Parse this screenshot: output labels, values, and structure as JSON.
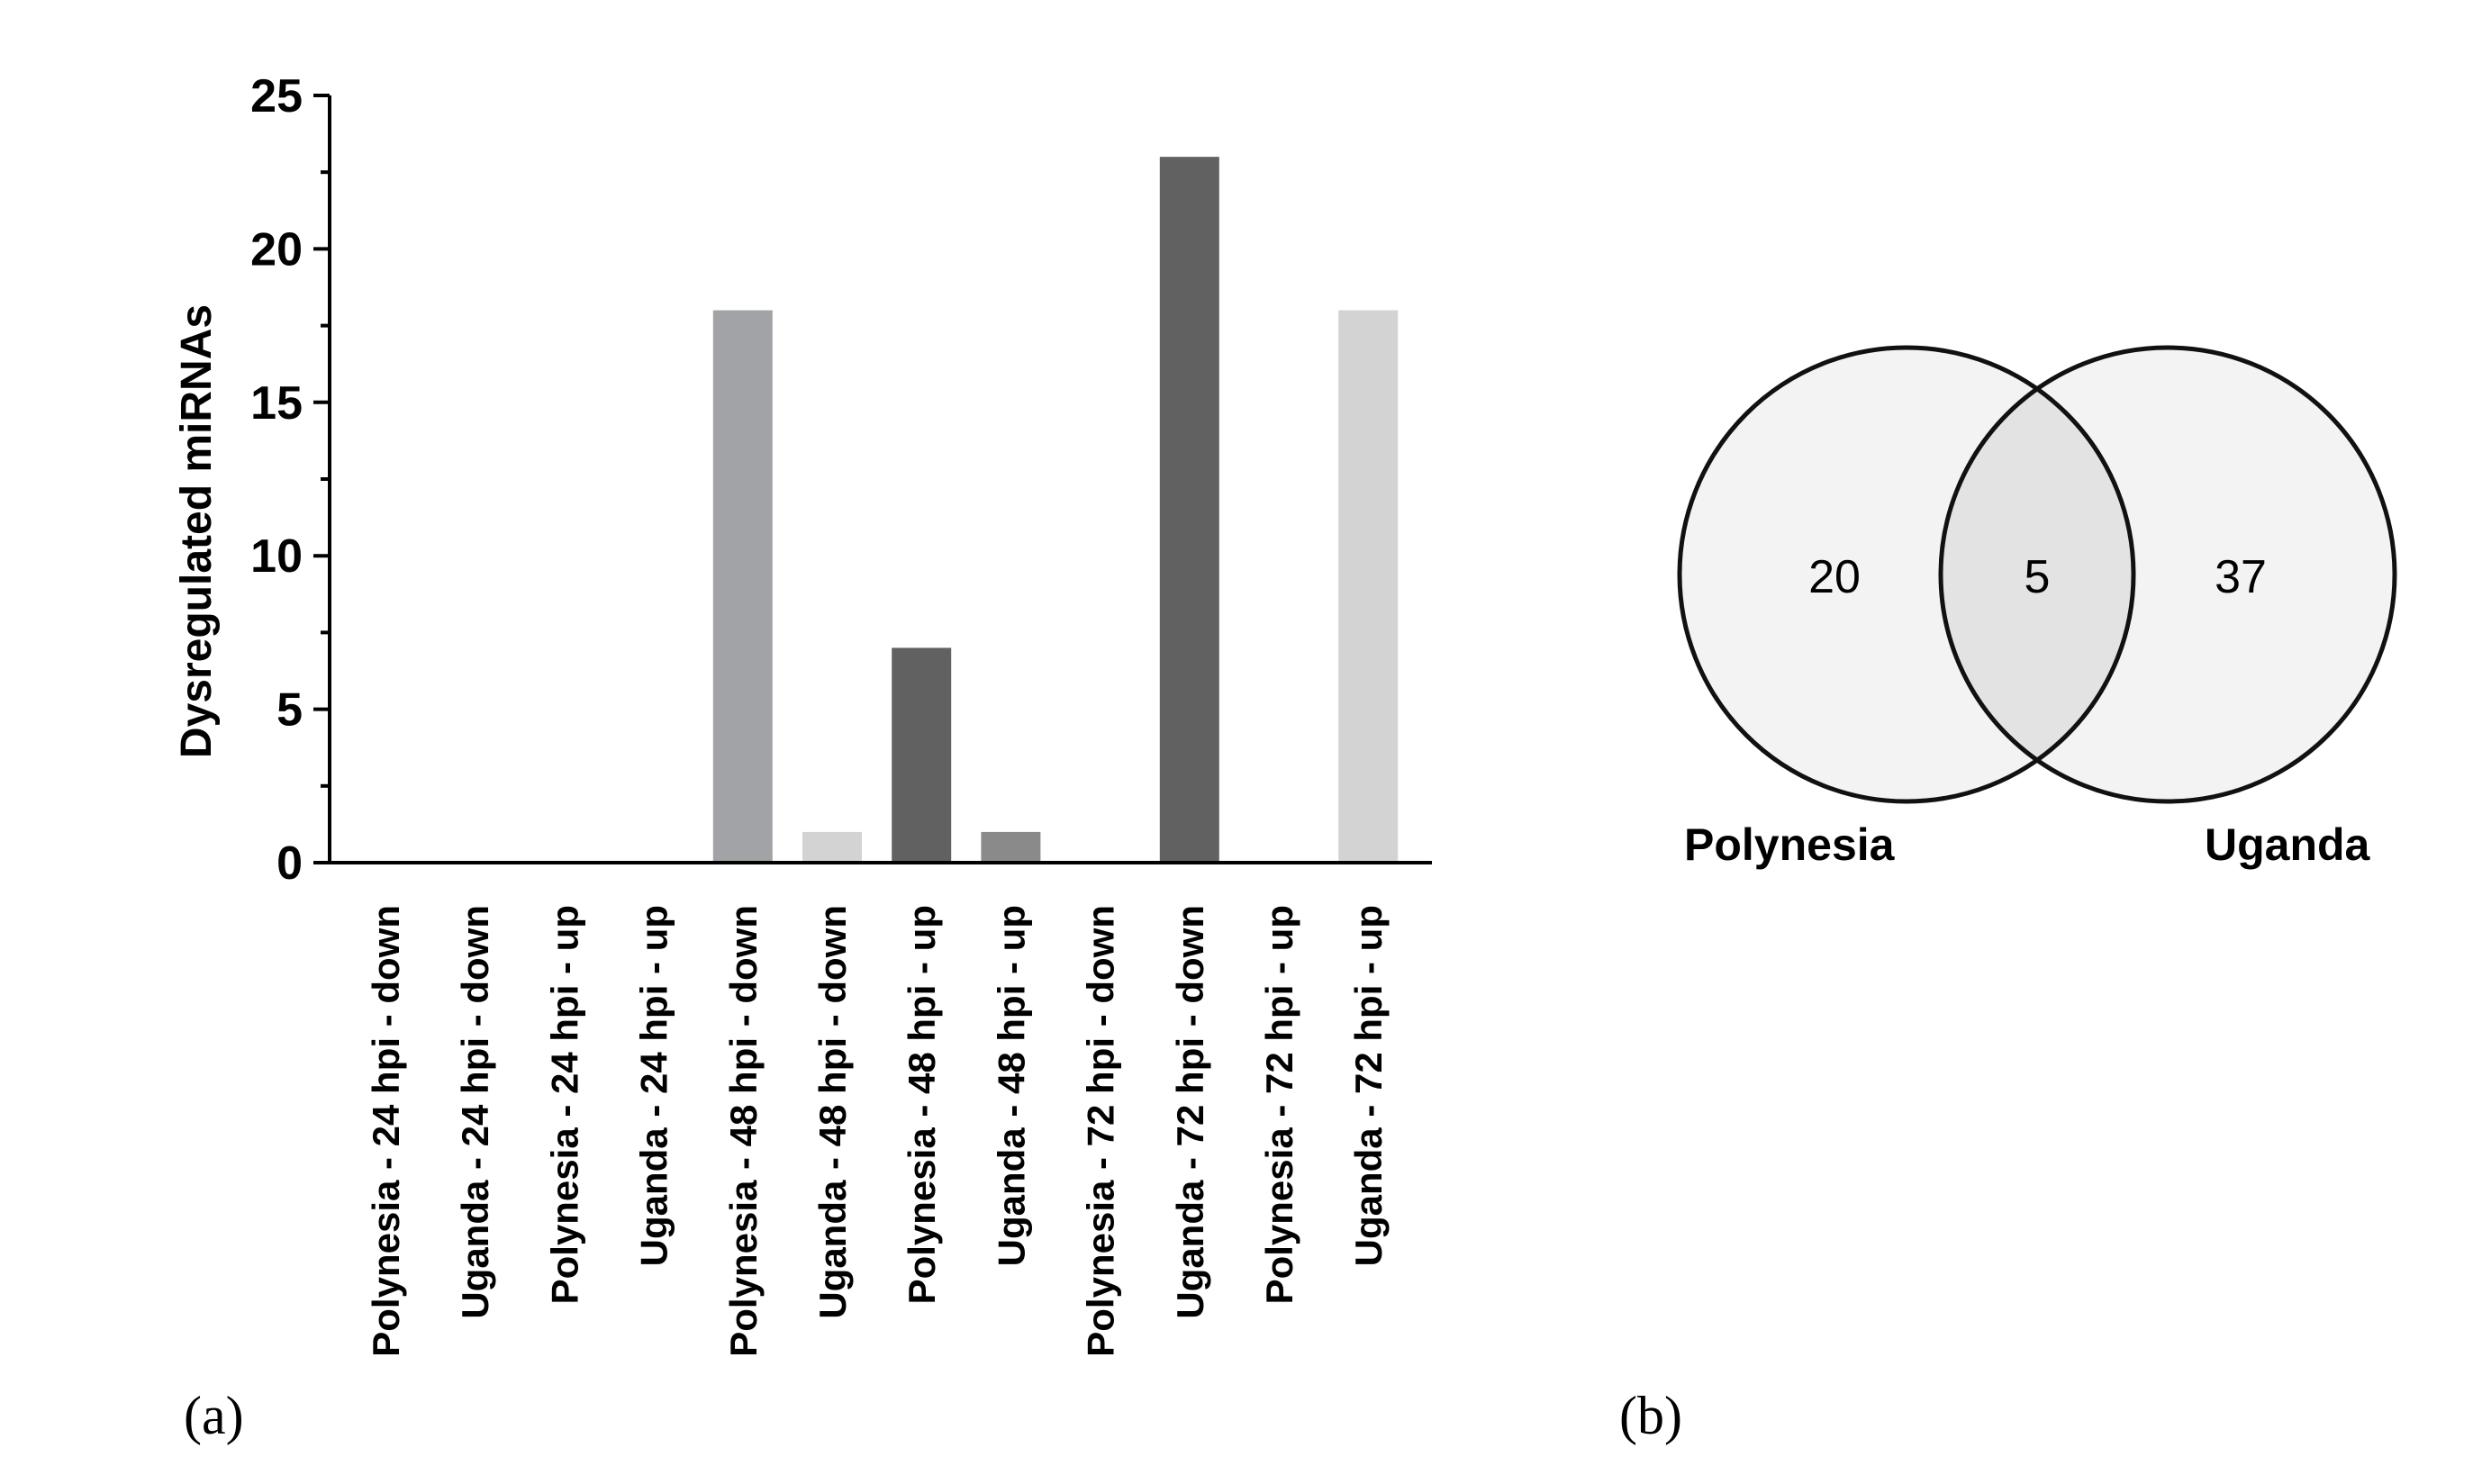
{
  "panels": {
    "a_label": "(a)",
    "b_label": "(b)"
  },
  "chart_data": [
    {
      "type": "bar",
      "title": "",
      "xlabel": "",
      "ylabel": "Dysregulated miRNAs",
      "ylim": [
        0,
        25
      ],
      "y_ticks": [
        0,
        5,
        10,
        15,
        20,
        25
      ],
      "grid": false,
      "legend": "none",
      "categories": [
        "Polynesia - 24 hpi - down",
        "Uganda - 24 hpi - down",
        "Polynesia - 24 hpi - up",
        "Uganda - 24 hpi - up",
        "Polynesia - 48 hpi - down",
        "Uganda - 48 hpi - down",
        "Polynesia - 48 hpi - up",
        "Uganda - 48 hpi - up",
        "Polynesia - 72 hpi - down",
        "Uganda - 72 hpi - down",
        "Polynesia - 72 hpi - up",
        "Uganda - 72 hpi - up"
      ],
      "values": [
        0,
        0,
        0,
        0,
        18,
        1,
        7,
        1,
        0,
        23,
        0,
        18
      ],
      "bar_colors": [
        "#a2a3a6",
        "#d3d3d3",
        "#616161",
        "#8a8a8a",
        "#a2a3a6",
        "#d3d3d3",
        "#616161",
        "#8a8a8a",
        "#a2a3a6",
        "#616161",
        "#616161",
        "#d3d3d3"
      ]
    },
    {
      "type": "venn",
      "sets": [
        "Polynesia",
        "Uganda"
      ],
      "values": {
        "Polynesia_only": "20",
        "intersection": "5",
        "Uganda_only": "37"
      },
      "colors": {
        "fill": "#efefef",
        "intersection_fill": "#e3e3e3",
        "stroke": "#111111"
      }
    }
  ]
}
